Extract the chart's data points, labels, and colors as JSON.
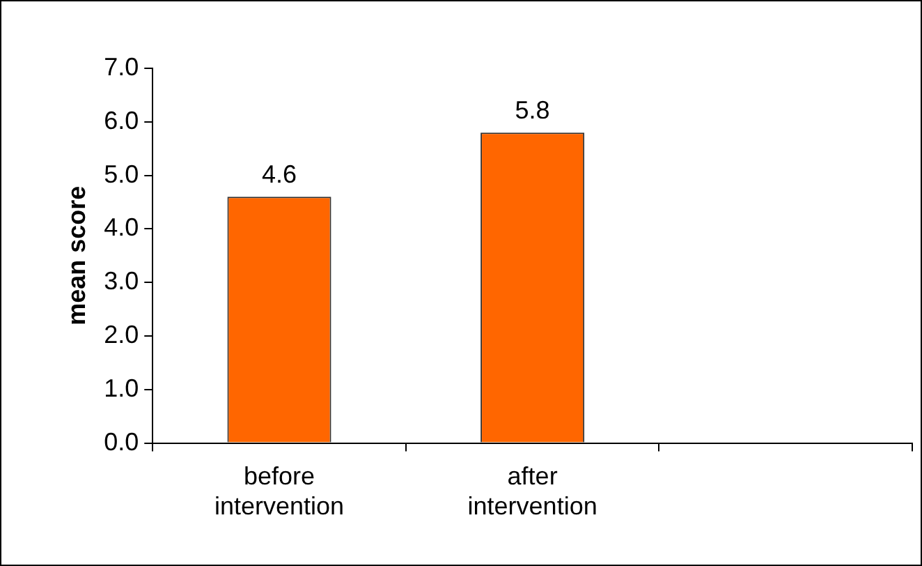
{
  "chart_data": {
    "type": "bar",
    "ylabel": "mean score",
    "categories": [
      "before intervention",
      "after intervention",
      null
    ],
    "values": [
      4.6,
      5.8,
      null
    ],
    "color": "#ff6600",
    "ylim": [
      0,
      7
    ],
    "yticks": [
      {
        "value": 0,
        "label": "0.0"
      },
      {
        "value": 1,
        "label": "1.0"
      },
      {
        "value": 2,
        "label": "2.0"
      },
      {
        "value": 3,
        "label": "3.0"
      },
      {
        "value": 4,
        "label": "4.0"
      },
      {
        "value": 5,
        "label": "5.0"
      },
      {
        "value": 6,
        "label": "6.0"
      },
      {
        "value": 7,
        "label": "7.0"
      }
    ],
    "data_labels": true,
    "grid": false,
    "legend": false
  }
}
